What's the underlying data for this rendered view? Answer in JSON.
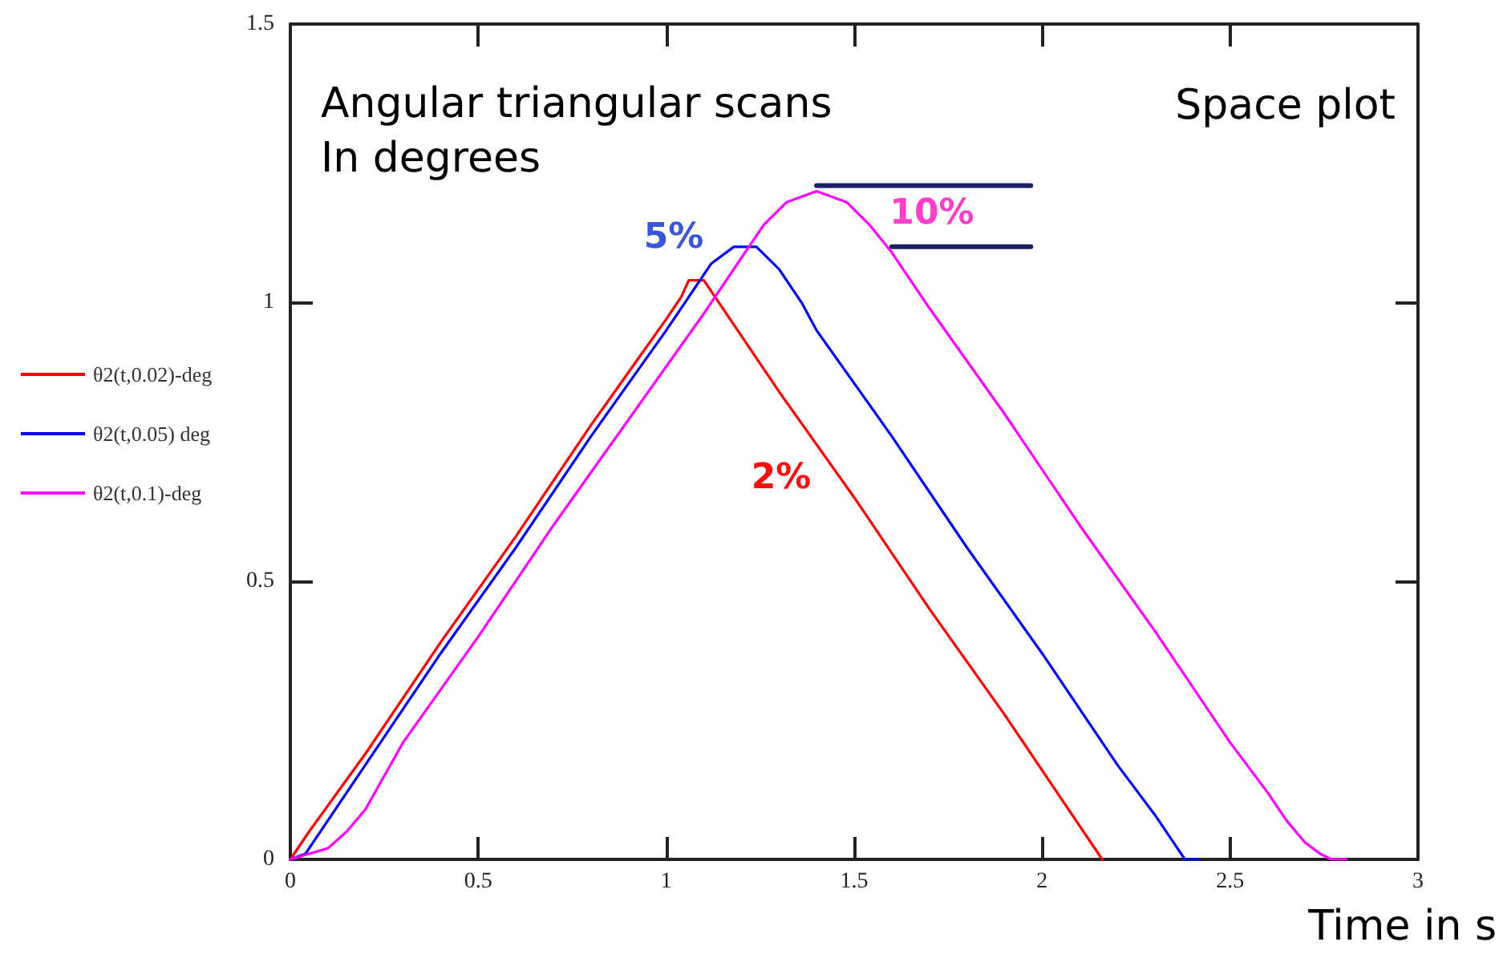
{
  "chart_data": {
    "type": "line",
    "title": "Angular triangular scans",
    "subtitle": "In degrees",
    "xlabel": "Time in s",
    "annotations": [
      "Space plot",
      "5%",
      "10%",
      "2%"
    ],
    "xlim": [
      0,
      3
    ],
    "xticks": [
      0,
      0.5,
      1,
      1.5,
      2,
      2.5,
      3
    ],
    "ylim": [
      0,
      1.5
    ],
    "yticks": [
      0,
      0.5,
      1,
      1.5
    ],
    "grid": false,
    "legend": "left",
    "series": [
      {
        "name": "θ2(t,0.02)-deg",
        "color": "#ff0000",
        "x": [
          0,
          0.05,
          0.2,
          0.4,
          0.6,
          0.8,
          1.0,
          1.04,
          1.06,
          1.1,
          1.14,
          1.3,
          1.5,
          1.7,
          1.9,
          2.1,
          2.16
        ],
        "values": [
          0,
          0.05,
          0.19,
          0.39,
          0.58,
          0.78,
          0.97,
          1.01,
          1.04,
          1.04,
          1.0,
          0.84,
          0.65,
          0.45,
          0.26,
          0.06,
          0
        ]
      },
      {
        "name": "θ2(t,0.05) deg",
        "color": "#0000ff",
        "x": [
          0,
          0.04,
          0.1,
          0.2,
          0.4,
          0.6,
          0.8,
          1.0,
          1.06,
          1.12,
          1.18,
          1.24,
          1.3,
          1.36,
          1.4,
          1.6,
          1.8,
          2.0,
          2.2,
          2.3,
          2.35,
          2.38,
          2.42
        ],
        "values": [
          0,
          0.01,
          0.07,
          0.17,
          0.37,
          0.56,
          0.76,
          0.95,
          1.01,
          1.07,
          1.1,
          1.1,
          1.06,
          1.0,
          0.95,
          0.76,
          0.56,
          0.37,
          0.17,
          0.08,
          0.03,
          0,
          0
        ]
      },
      {
        "name": "θ2(t,0.1)-deg",
        "color": "#ff00ff",
        "x": [
          0,
          0.05,
          0.1,
          0.15,
          0.2,
          0.25,
          0.3,
          0.5,
          0.7,
          0.9,
          1.1,
          1.2,
          1.26,
          1.32,
          1.4,
          1.48,
          1.54,
          1.6,
          1.7,
          1.9,
          2.1,
          2.3,
          2.5,
          2.6,
          2.65,
          2.7,
          2.74,
          2.77,
          2.81
        ],
        "values": [
          0,
          0.01,
          0.02,
          0.05,
          0.09,
          0.15,
          0.21,
          0.4,
          0.6,
          0.79,
          0.98,
          1.08,
          1.14,
          1.18,
          1.2,
          1.18,
          1.14,
          1.09,
          0.99,
          0.8,
          0.6,
          0.41,
          0.21,
          0.12,
          0.07,
          0.03,
          0.01,
          0,
          0
        ]
      },
      {
        "color": "#1a1f64",
        "x": [
          1.4,
          1.97
        ],
        "values": [
          1.21,
          1.21
        ]
      },
      {
        "color": "#1a1f64",
        "x": [
          1.6,
          1.97
        ],
        "values": [
          1.1,
          1.1
        ]
      }
    ]
  }
}
